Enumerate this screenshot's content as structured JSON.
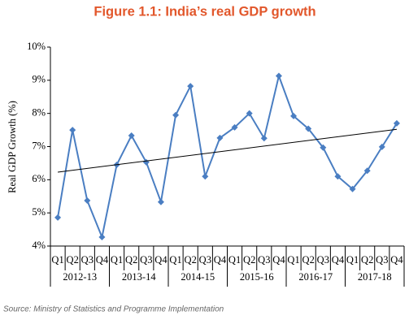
{
  "chart_data": {
    "type": "line",
    "title": "Figure 1.1: India’s real GDP growth",
    "y_label": "Real GDP Growth (%)",
    "source": "Source: Ministry of Statistics and Programme Implementation",
    "categories": [
      "Q1",
      "Q2",
      "Q3",
      "Q4",
      "Q1",
      "Q2",
      "Q3",
      "Q4",
      "Q1",
      "Q2",
      "Q3",
      "Q4",
      "Q1",
      "Q2",
      "Q3",
      "Q4",
      "Q1",
      "Q2",
      "Q3",
      "Q4",
      "Q1",
      "Q2",
      "Q3",
      "Q4"
    ],
    "groups": [
      "2012-13",
      "2013-14",
      "2014-15",
      "2015-16",
      "2016-17",
      "2017-18"
    ],
    "series": [
      {
        "color": "#4a7ec2",
        "values": [
          4.86,
          7.5,
          5.37,
          4.27,
          6.45,
          7.33,
          6.53,
          5.33,
          7.95,
          8.82,
          6.1,
          7.26,
          7.58,
          8.0,
          7.25,
          9.13,
          7.92,
          7.54,
          6.97,
          6.1,
          5.72,
          6.27,
          6.99,
          7.7
        ]
      }
    ],
    "trendline": {
      "color": "#000000",
      "values": [
        6.23,
        7.52
      ]
    },
    "ylim": [
      4,
      10
    ],
    "yticks": [
      {
        "value": 4,
        "label": "4%"
      },
      {
        "value": 5,
        "label": "5%"
      },
      {
        "value": 6,
        "label": "6%"
      },
      {
        "value": 7,
        "label": "7%"
      },
      {
        "value": 8,
        "label": "8%"
      },
      {
        "value": 9,
        "label": "9%"
      },
      {
        "value": 10,
        "label": "10%"
      }
    ]
  }
}
